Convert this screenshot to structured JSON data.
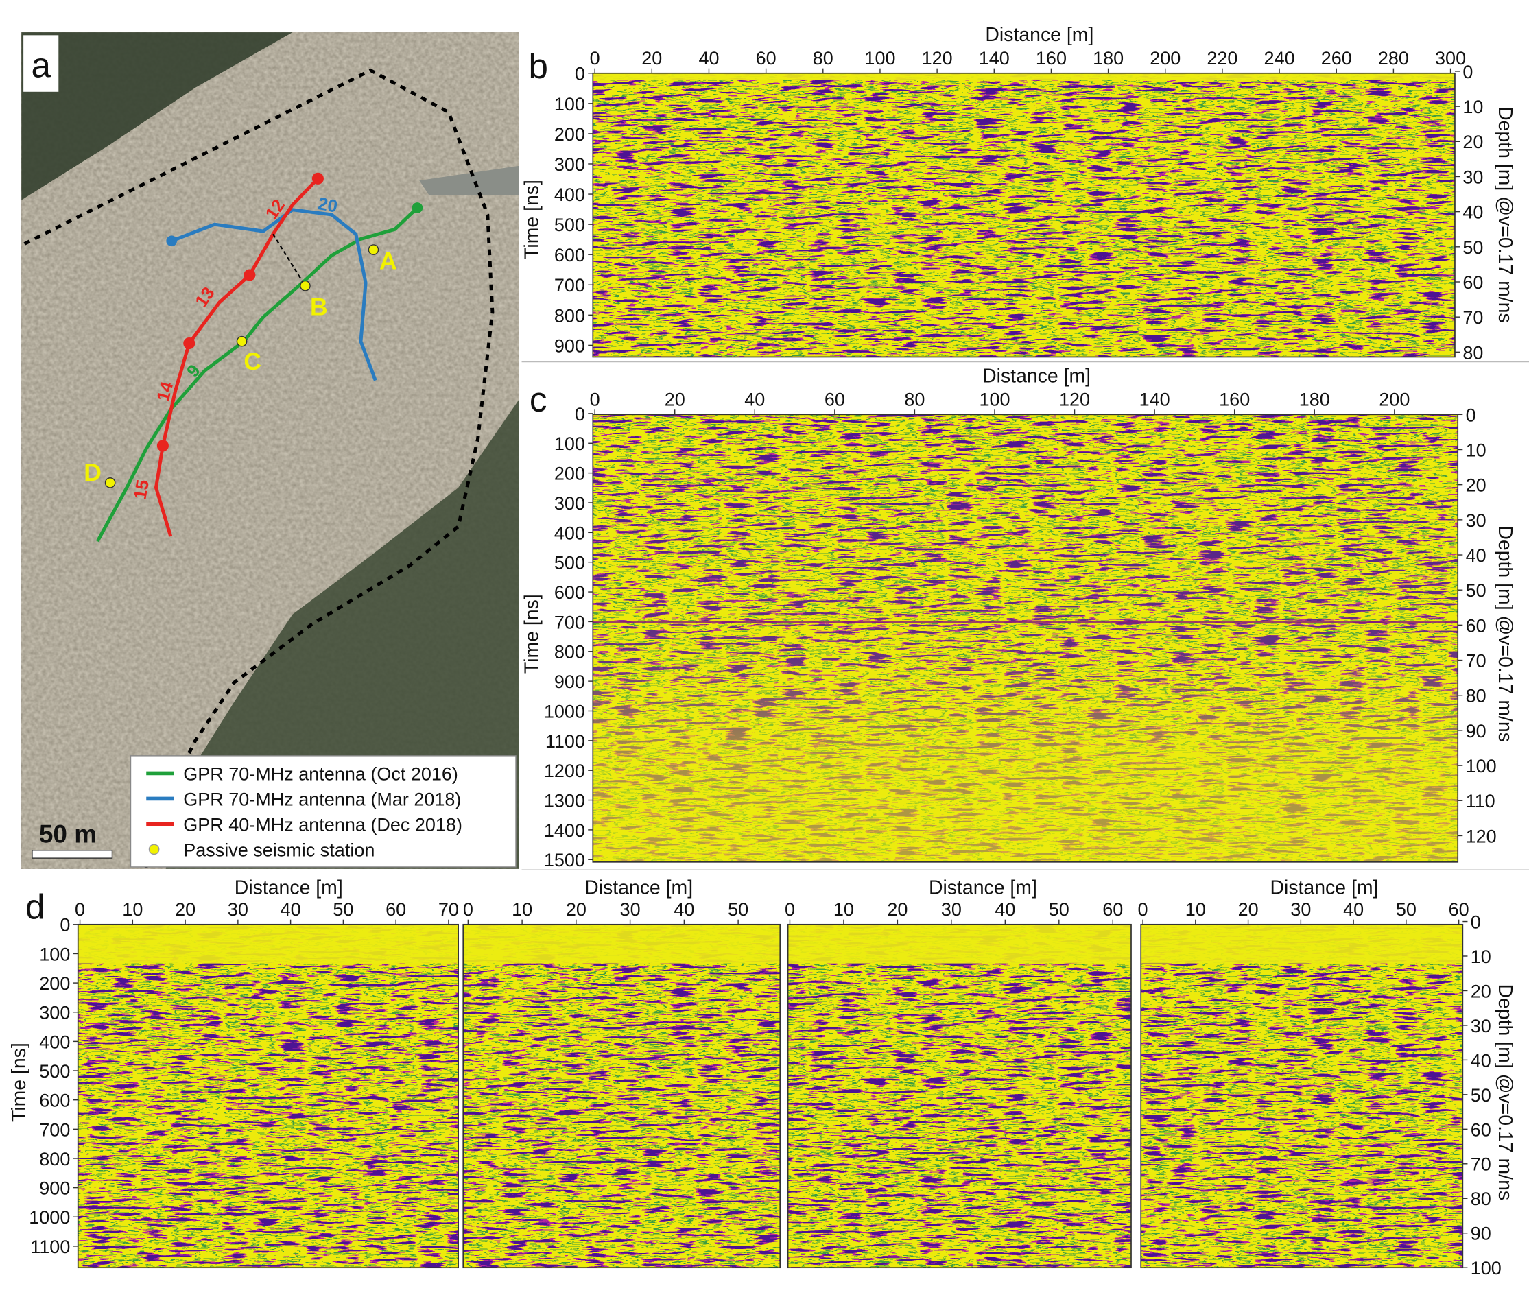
{
  "panel_a": {
    "label": "a",
    "profile_numbers": [
      "12",
      "20",
      "13",
      "9",
      "14",
      "15"
    ],
    "stations": [
      "A",
      "B",
      "C",
      "D"
    ],
    "legend": [
      "GPR 70-MHz antenna (Oct 2016)",
      "GPR 70-MHz antenna (Mar 2018)",
      "GPR 40-MHz antenna (Dec 2018)",
      "Passive seismic station"
    ],
    "scale_bar": "50 m"
  },
  "panel_b": {
    "label": "b",
    "x_label": "Distance [m]",
    "x_ticks": [
      0,
      20,
      40,
      60,
      80,
      100,
      120,
      140,
      160,
      180,
      200,
      220,
      240,
      260,
      280,
      300
    ],
    "y_label": "Time [ns]",
    "y_ticks": [
      0,
      100,
      200,
      300,
      400,
      500,
      600,
      700,
      800,
      900
    ],
    "y2_label": "Depth [m] @v=0.17 m/ns",
    "y2_ticks": [
      0,
      10,
      20,
      30,
      40,
      50,
      60,
      70,
      80
    ]
  },
  "panel_c": {
    "label": "c",
    "x_label": "Distance [m]",
    "x_ticks": [
      0,
      20,
      40,
      60,
      80,
      100,
      120,
      140,
      160,
      180,
      200
    ],
    "y_label": "Time [ns]",
    "y_ticks": [
      0,
      100,
      200,
      300,
      400,
      500,
      600,
      700,
      800,
      900,
      1000,
      1100,
      1200,
      1300,
      1400,
      1500
    ],
    "y2_label": "Depth [m] @v=0.17 m/ns",
    "y2_ticks": [
      0,
      10,
      20,
      30,
      40,
      50,
      60,
      70,
      80,
      90,
      100,
      110,
      120
    ]
  },
  "panel_d": {
    "label": "d",
    "y_label": "Time [ns]",
    "y_ticks": [
      0,
      100,
      200,
      300,
      400,
      500,
      600,
      700,
      800,
      900,
      1000,
      1100
    ],
    "y2_label": "Depth [m] @v=0.17 m/ns",
    "y2_ticks": [
      0,
      10,
      20,
      30,
      40,
      50,
      60,
      70,
      80,
      90,
      100
    ],
    "profiles": [
      {
        "x_label": "Distance [m]",
        "x_ticks": [
          0,
          10,
          20,
          30,
          40,
          50,
          60,
          70
        ]
      },
      {
        "x_label": "Distance [m]",
        "x_ticks": [
          0,
          10,
          20,
          30,
          40,
          50
        ]
      },
      {
        "x_label": "Distance [m]",
        "x_ticks": [
          0,
          10,
          20,
          30,
          40,
          50,
          60
        ]
      },
      {
        "x_label": "Distance [m]",
        "x_ticks": [
          0,
          10,
          20,
          30,
          40,
          50,
          60
        ]
      }
    ]
  }
}
